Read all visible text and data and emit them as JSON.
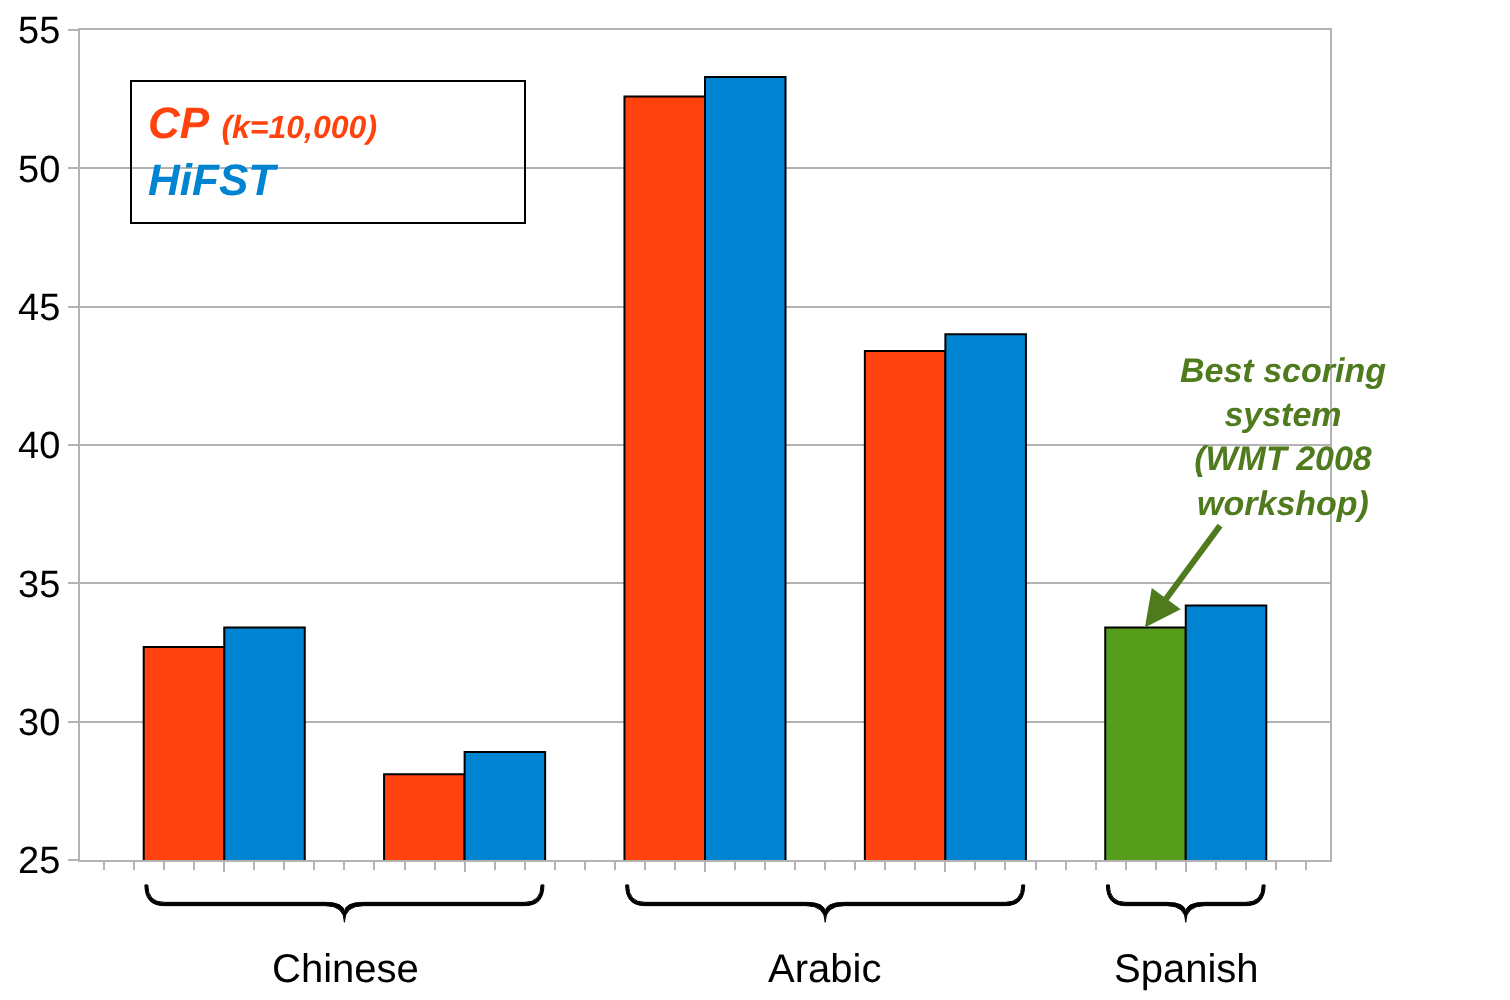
{
  "chart_data": {
    "type": "bar",
    "categories": [
      null,
      null,
      null,
      null,
      null
    ],
    "series": [
      {
        "name": "CP (k=10,000)",
        "color": "#ff420e",
        "colors": [
          "#ff420e",
          "#ff420e",
          "#ff420e",
          "#ff420e",
          "#579d1c"
        ],
        "values": [
          32.7,
          28.1,
          52.6,
          43.4,
          33.4
        ]
      },
      {
        "name": "HiFST",
        "color": "#0084d1",
        "values": [
          33.4,
          28.9,
          53.3,
          44.0,
          34.2
        ]
      }
    ],
    "ylim": [
      25,
      55
    ],
    "yticks": [
      25,
      30,
      35,
      40,
      45,
      50,
      55
    ],
    "grid": "y",
    "legend": "top left",
    "annotations": [
      "Chinese",
      "Arabic",
      "Spanish",
      "Best scoring system (WMT 2008 workshop)"
    ]
  }
}
